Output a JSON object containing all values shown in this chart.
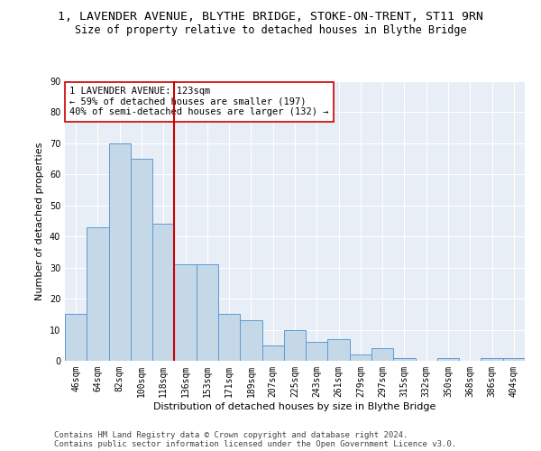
{
  "title": "1, LAVENDER AVENUE, BLYTHE BRIDGE, STOKE-ON-TRENT, ST11 9RN",
  "subtitle": "Size of property relative to detached houses in Blythe Bridge",
  "xlabel": "Distribution of detached houses by size in Blythe Bridge",
  "ylabel": "Number of detached properties",
  "categories": [
    "46sqm",
    "64sqm",
    "82sqm",
    "100sqm",
    "118sqm",
    "136sqm",
    "153sqm",
    "171sqm",
    "189sqm",
    "207sqm",
    "225sqm",
    "243sqm",
    "261sqm",
    "279sqm",
    "297sqm",
    "315sqm",
    "332sqm",
    "350sqm",
    "368sqm",
    "386sqm",
    "404sqm"
  ],
  "values": [
    15,
    43,
    70,
    65,
    44,
    31,
    31,
    15,
    13,
    5,
    10,
    6,
    7,
    2,
    4,
    1,
    0,
    1,
    0,
    1,
    1
  ],
  "bar_color": "#c5d8e8",
  "bar_edge_color": "#5b9bd5",
  "vline_x": 4.5,
  "vline_color": "#cc0000",
  "annotation_text": "1 LAVENDER AVENUE: 123sqm\n← 59% of detached houses are smaller (197)\n40% of semi-detached houses are larger (132) →",
  "annotation_box_color": "#ffffff",
  "annotation_box_edge_color": "#cc0000",
  "ylim": [
    0,
    90
  ],
  "yticks": [
    0,
    10,
    20,
    30,
    40,
    50,
    60,
    70,
    80,
    90
  ],
  "bg_color": "#e8eef5",
  "footer1": "Contains HM Land Registry data © Crown copyright and database right 2024.",
  "footer2": "Contains public sector information licensed under the Open Government Licence v3.0.",
  "title_fontsize": 9.5,
  "subtitle_fontsize": 8.5,
  "label_fontsize": 8,
  "tick_fontsize": 7,
  "annotation_fontsize": 7.5,
  "footer_fontsize": 6.5
}
